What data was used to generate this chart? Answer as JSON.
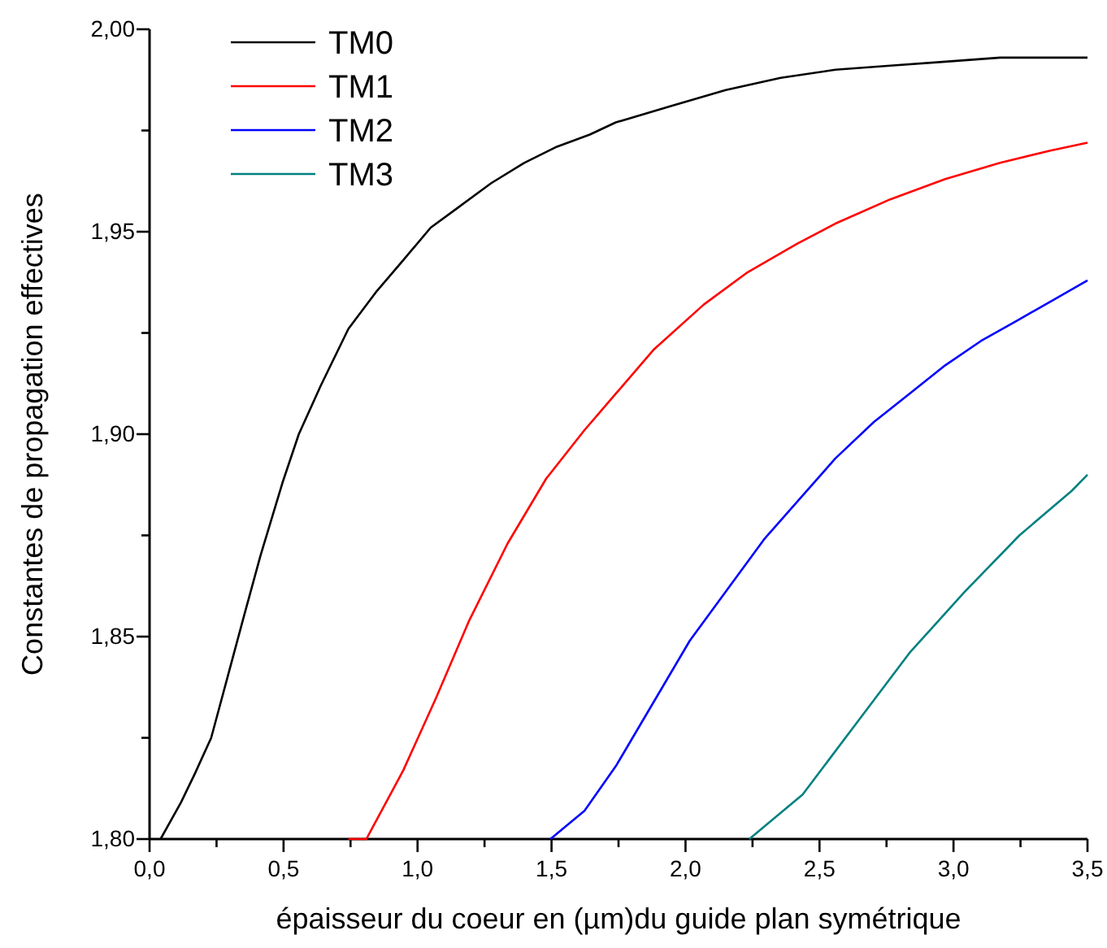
{
  "chart_data": {
    "type": "line",
    "xlabel": "épaisseur du coeur en (µm)du guide plan symétrique",
    "ylabel": "Constantes de propagation effectives",
    "xlim": [
      0,
      3.5
    ],
    "ylim": [
      1.8,
      2.0
    ],
    "xticks": [
      {
        "value": 0,
        "label": "0,0"
      },
      {
        "value": 0.25,
        "label": null
      },
      {
        "value": 0.5,
        "label": "0,5"
      },
      {
        "value": 0.75,
        "label": null
      },
      {
        "value": 1,
        "label": "1,0"
      },
      {
        "value": 1.25,
        "label": null
      },
      {
        "value": 1.5,
        "label": "1,5"
      },
      {
        "value": 1.75,
        "label": null
      },
      {
        "value": 2,
        "label": "2,0"
      },
      {
        "value": 2.25,
        "label": null
      },
      {
        "value": 2.5,
        "label": "2,5"
      },
      {
        "value": 2.75,
        "label": null
      },
      {
        "value": 3,
        "label": "3,0"
      },
      {
        "value": 3.25,
        "label": null
      },
      {
        "value": 3.5,
        "label": "3,5"
      }
    ],
    "yticks": [
      {
        "value": 1.8,
        "label": "1,80"
      },
      {
        "value": 1.825,
        "label": null
      },
      {
        "value": 1.85,
        "label": "1,85"
      },
      {
        "value": 1.875,
        "label": null
      },
      {
        "value": 1.9,
        "label": "1,90"
      },
      {
        "value": 1.925,
        "label": null
      },
      {
        "value": 1.95,
        "label": "1,95"
      },
      {
        "value": 1.975,
        "label": null
      },
      {
        "value": 2.0,
        "label": "2,00"
      }
    ],
    "grid": false,
    "legend": "top left",
    "marker": "none",
    "line_style": "solid",
    "series": [
      {
        "name": "TM0",
        "color": "#000000",
        "x": [
          0.041,
          0.117,
          0.168,
          0.23,
          0.291,
          0.352,
          0.414,
          0.496,
          0.557,
          0.639,
          0.742,
          0.844,
          0.947,
          1.049,
          1.152,
          1.275,
          1.398,
          1.52,
          1.643,
          1.74,
          1.945,
          2.15,
          2.355,
          2.559,
          2.764,
          2.969,
          3.174,
          3.5
        ],
        "values": [
          1.8,
          1.809,
          1.816,
          1.825,
          1.84,
          1.855,
          1.87,
          1.888,
          1.9,
          1.912,
          1.926,
          1.935,
          1.943,
          1.951,
          1.956,
          1.962,
          1.967,
          1.971,
          1.974,
          1.977,
          1.981,
          1.985,
          1.988,
          1.99,
          1.991,
          1.992,
          1.993,
          1.993
        ]
      },
      {
        "name": "TM1",
        "color": "#ff0000",
        "x": [
          0.742,
          0.809,
          0.947,
          1.07,
          1.193,
          1.336,
          1.48,
          1.623,
          1.74,
          1.883,
          2.068,
          2.232,
          2.416,
          2.559,
          2.764,
          2.969,
          3.174,
          3.358,
          3.5
        ],
        "values": [
          1.8,
          1.8,
          1.817,
          1.835,
          1.854,
          1.873,
          1.889,
          1.901,
          1.91,
          1.921,
          1.932,
          1.94,
          1.947,
          1.952,
          1.958,
          1.963,
          1.967,
          1.97,
          1.972
        ]
      },
      {
        "name": "TM2",
        "color": "#0000ff",
        "x": [
          1.496,
          1.623,
          1.74,
          2.016,
          2.16,
          2.293,
          2.426,
          2.559,
          2.703,
          2.836,
          2.969,
          3.102,
          3.236,
          3.369,
          3.5
        ],
        "values": [
          1.8,
          1.807,
          1.818,
          1.849,
          1.862,
          1.874,
          1.884,
          1.894,
          1.903,
          1.91,
          1.917,
          1.923,
          1.928,
          1.933,
          1.938
        ]
      },
      {
        "name": "TM3",
        "color": "#008080",
        "x": [
          2.238,
          2.437,
          2.631,
          2.836,
          3.041,
          3.246,
          3.441,
          3.5
        ],
        "values": [
          1.8,
          1.811,
          1.828,
          1.846,
          1.861,
          1.875,
          1.886,
          1.89
        ]
      }
    ]
  }
}
